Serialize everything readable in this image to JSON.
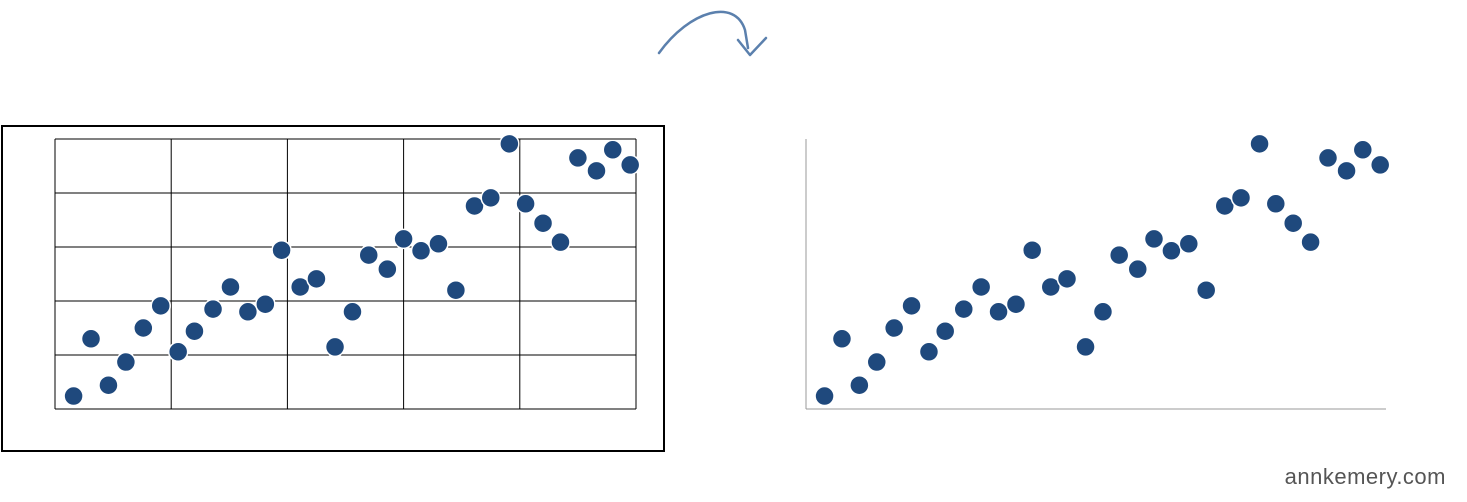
{
  "chart_data": [
    {
      "type": "scatter",
      "color": "#1f497d",
      "grid": true,
      "axes": false,
      "xlim": [
        0,
        5
      ],
      "ylim": [
        0,
        5
      ],
      "xticks": [
        0,
        1,
        2,
        3,
        4,
        5
      ],
      "yticks": [
        0,
        1,
        2,
        3,
        4,
        5
      ],
      "x": [
        0.16,
        0.31,
        0.46,
        0.61,
        0.76,
        0.91,
        1.06,
        1.2,
        1.36,
        1.51,
        1.66,
        1.81,
        1.95,
        2.11,
        2.25,
        2.41,
        2.56,
        2.7,
        2.86,
        3.0,
        3.15,
        3.3,
        3.45,
        3.61,
        3.75,
        3.91,
        4.05,
        4.2,
        4.35,
        4.5,
        4.66,
        4.8,
        4.95
      ],
      "values": [
        0.24,
        1.3,
        0.44,
        0.87,
        1.5,
        1.91,
        1.06,
        1.44,
        1.85,
        2.26,
        1.8,
        1.94,
        2.94,
        2.26,
        2.41,
        1.15,
        1.8,
        2.85,
        2.59,
        3.15,
        2.93,
        3.06,
        2.2,
        3.76,
        3.91,
        4.91,
        3.8,
        3.44,
        3.09,
        4.65,
        4.41,
        4.8,
        4.52
      ]
    },
    {
      "type": "scatter",
      "color": "#1f497d",
      "grid": false,
      "axes": true,
      "xlim": [
        0,
        5
      ],
      "ylim": [
        0,
        5
      ],
      "x": [
        0.16,
        0.31,
        0.46,
        0.61,
        0.76,
        0.91,
        1.06,
        1.2,
        1.36,
        1.51,
        1.66,
        1.81,
        1.95,
        2.11,
        2.25,
        2.41,
        2.56,
        2.7,
        2.86,
        3.0,
        3.15,
        3.3,
        3.45,
        3.61,
        3.75,
        3.91,
        4.05,
        4.2,
        4.35,
        4.5,
        4.66,
        4.8,
        4.95
      ],
      "values": [
        0.24,
        1.3,
        0.44,
        0.87,
        1.5,
        1.91,
        1.06,
        1.44,
        1.85,
        2.26,
        1.8,
        1.94,
        2.94,
        2.26,
        2.41,
        1.15,
        1.8,
        2.85,
        2.59,
        3.15,
        2.93,
        3.06,
        2.2,
        3.76,
        3.91,
        4.91,
        3.8,
        3.44,
        3.09,
        4.65,
        4.41,
        4.8,
        4.52
      ]
    }
  ],
  "footer": {
    "credit": "annkemery.com"
  }
}
